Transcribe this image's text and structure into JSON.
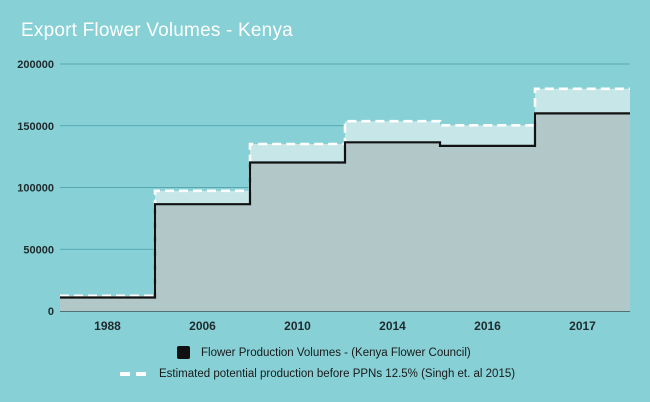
{
  "title": "Export Flower Volumes - Kenya",
  "colors": {
    "background": "#86d0d6",
    "solid_fill": "#b1c7c8",
    "dashed_fill": "#c6e6e8",
    "solid_line": "#111111",
    "dashed_line": "#ffffff",
    "grid": "#4a9aa5"
  },
  "chart_data": {
    "type": "area",
    "step": true,
    "categories": [
      "1988",
      "2006",
      "2010",
      "2014",
      "2016",
      "2017"
    ],
    "ylim": [
      0,
      200000
    ],
    "yticks": [
      "0",
      "50000",
      "100000",
      "150000",
      "200000"
    ],
    "grid": true,
    "legend_position": "bottom",
    "series": [
      {
        "name": "Flower Production Volumes - (Kenya Flower Council)",
        "style": "solid",
        "values": [
          10946,
          86480,
          120220,
          136600,
          133658,
          159961
        ]
      },
      {
        "name": "Estimated potential production before PPNs 12.5% (Singh et. al 2015)",
        "style": "dashed",
        "values": [
          12314,
          97290,
          135248,
          153675,
          150365,
          179956
        ]
      }
    ]
  }
}
